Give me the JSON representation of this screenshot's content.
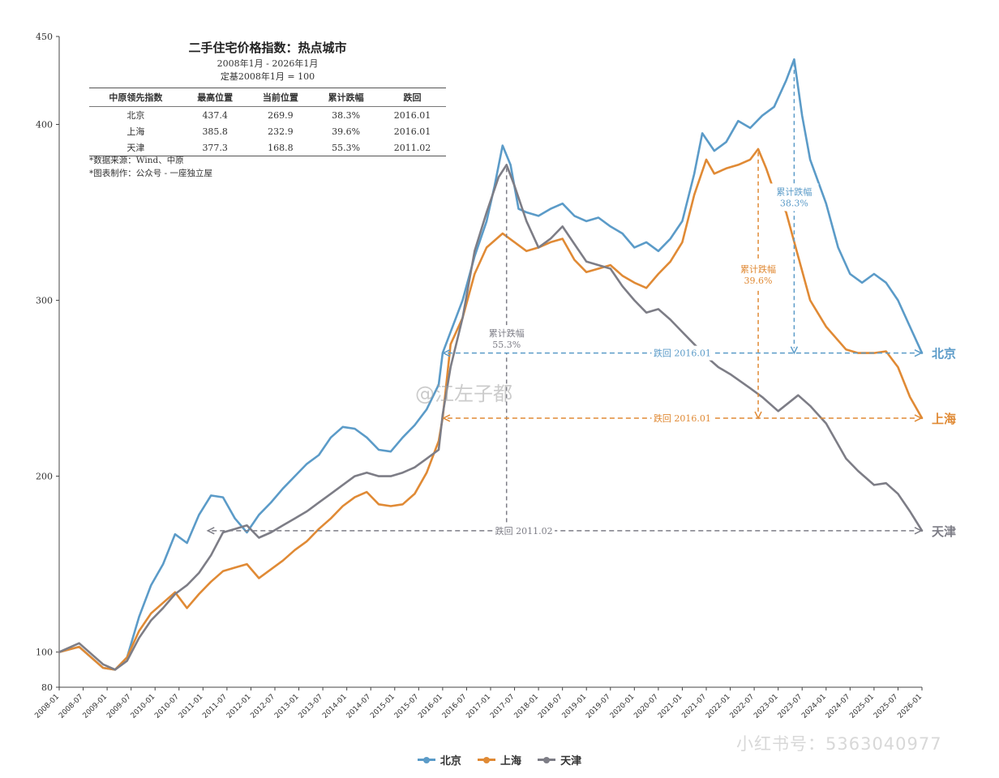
{
  "info": {
    "title": "二手住宅价格指数：热点城市",
    "subtitle1": "2008年1月 - 2026年1月",
    "subtitle2": "定基2008年1月 = 100",
    "headers": [
      "中原领先指数",
      "最高位置",
      "当前位置",
      "累计跌幅",
      "跌回"
    ],
    "rows": [
      [
        "北京",
        "437.4",
        "269.9",
        "38.3%",
        "2016.01"
      ],
      [
        "上海",
        "385.8",
        "232.9",
        "39.6%",
        "2016.01"
      ],
      [
        "天津",
        "377.3",
        "168.8",
        "55.3%",
        "2011.02"
      ]
    ],
    "note1": "*数据来源：Wind、中原",
    "note2": "*图表制作：公众号 - 一座独立屋"
  },
  "watermark": "@江左子都",
  "watermark2": "小红书号：5363040977",
  "legend": [
    {
      "label": "北京",
      "color": "#5b9bc8"
    },
    {
      "label": "上海",
      "color": "#e08a35"
    },
    {
      "label": "天津",
      "color": "#7d7d86"
    }
  ],
  "chart_data": {
    "type": "line",
    "title": "二手住宅价格指数：热点城市",
    "ylim": [
      80,
      450
    ],
    "yticks": [
      80,
      100,
      200,
      300,
      400,
      450
    ],
    "xticks": [
      "2008-01",
      "2008-07",
      "2009-01",
      "2009-07",
      "2010-01",
      "2010-07",
      "2011-01",
      "2011-07",
      "2012-01",
      "2012-07",
      "2013-01",
      "2013-07",
      "2014-01",
      "2014-07",
      "2015-01",
      "2015-07",
      "2016-01",
      "2016-07",
      "2017-01",
      "2017-07",
      "2018-01",
      "2018-07",
      "2019-01",
      "2019-07",
      "2020-01",
      "2020-07",
      "2021-01",
      "2021-07",
      "2022-01",
      "2022-07",
      "2023-01",
      "2023-07",
      "2024-01",
      "2024-07",
      "2025-01",
      "2025-07",
      "2026-01"
    ],
    "grid": false,
    "legend_position": "bottom",
    "series": [
      {
        "name": "北京",
        "color": "#5b9bc8",
        "points": [
          [
            "2008-01",
            100
          ],
          [
            "2008-06",
            103
          ],
          [
            "2008-12",
            91
          ],
          [
            "2009-03",
            90
          ],
          [
            "2009-06",
            97
          ],
          [
            "2009-09",
            120
          ],
          [
            "2009-12",
            138
          ],
          [
            "2010-03",
            150
          ],
          [
            "2010-06",
            167
          ],
          [
            "2010-09",
            162
          ],
          [
            "2010-12",
            178
          ],
          [
            "2011-03",
            189
          ],
          [
            "2011-06",
            188
          ],
          [
            "2011-09",
            176
          ],
          [
            "2011-12",
            168
          ],
          [
            "2012-03",
            178
          ],
          [
            "2012-06",
            185
          ],
          [
            "2012-09",
            193
          ],
          [
            "2012-12",
            200
          ],
          [
            "2013-03",
            207
          ],
          [
            "2013-06",
            212
          ],
          [
            "2013-09",
            222
          ],
          [
            "2013-12",
            228
          ],
          [
            "2014-03",
            227
          ],
          [
            "2014-06",
            222
          ],
          [
            "2014-09",
            215
          ],
          [
            "2014-12",
            214
          ],
          [
            "2015-03",
            222
          ],
          [
            "2015-06",
            229
          ],
          [
            "2015-09",
            238
          ],
          [
            "2015-12",
            252
          ],
          [
            "2016-01",
            270
          ],
          [
            "2016-03",
            282
          ],
          [
            "2016-06",
            300
          ],
          [
            "2016-09",
            325
          ],
          [
            "2016-12",
            345
          ],
          [
            "2017-02",
            365
          ],
          [
            "2017-04",
            388
          ],
          [
            "2017-06",
            377
          ],
          [
            "2017-08",
            352
          ],
          [
            "2017-10",
            350
          ],
          [
            "2018-01",
            348
          ],
          [
            "2018-04",
            352
          ],
          [
            "2018-07",
            355
          ],
          [
            "2018-10",
            348
          ],
          [
            "2019-01",
            345
          ],
          [
            "2019-04",
            347
          ],
          [
            "2019-07",
            342
          ],
          [
            "2019-10",
            338
          ],
          [
            "2020-01",
            330
          ],
          [
            "2020-04",
            333
          ],
          [
            "2020-07",
            328
          ],
          [
            "2020-10",
            335
          ],
          [
            "2021-01",
            345
          ],
          [
            "2021-04",
            372
          ],
          [
            "2021-06",
            395
          ],
          [
            "2021-09",
            385
          ],
          [
            "2021-12",
            390
          ],
          [
            "2022-03",
            402
          ],
          [
            "2022-06",
            398
          ],
          [
            "2022-09",
            405
          ],
          [
            "2022-12",
            410
          ],
          [
            "2023-03",
            425
          ],
          [
            "2023-05",
            437
          ],
          [
            "2023-07",
            405
          ],
          [
            "2023-09",
            380
          ],
          [
            "2024-01",
            355
          ],
          [
            "2024-04",
            330
          ],
          [
            "2024-07",
            315
          ],
          [
            "2024-10",
            310
          ],
          [
            "2025-01",
            315
          ],
          [
            "2025-04",
            310
          ],
          [
            "2025-07",
            300
          ],
          [
            "2025-10",
            285
          ],
          [
            "2026-01",
            270
          ]
        ]
      },
      {
        "name": "上海",
        "color": "#e08a35",
        "points": [
          [
            "2008-01",
            100
          ],
          [
            "2008-06",
            103
          ],
          [
            "2008-12",
            91
          ],
          [
            "2009-03",
            90
          ],
          [
            "2009-06",
            97
          ],
          [
            "2009-09",
            112
          ],
          [
            "2009-12",
            122
          ],
          [
            "2010-03",
            128
          ],
          [
            "2010-06",
            134
          ],
          [
            "2010-09",
            125
          ],
          [
            "2010-12",
            133
          ],
          [
            "2011-03",
            140
          ],
          [
            "2011-06",
            146
          ],
          [
            "2011-09",
            148
          ],
          [
            "2011-12",
            150
          ],
          [
            "2012-03",
            142
          ],
          [
            "2012-06",
            147
          ],
          [
            "2012-09",
            152
          ],
          [
            "2012-12",
            158
          ],
          [
            "2013-03",
            163
          ],
          [
            "2013-06",
            170
          ],
          [
            "2013-09",
            176
          ],
          [
            "2013-12",
            183
          ],
          [
            "2014-03",
            188
          ],
          [
            "2014-06",
            191
          ],
          [
            "2014-09",
            184
          ],
          [
            "2014-12",
            183
          ],
          [
            "2015-03",
            184
          ],
          [
            "2015-06",
            190
          ],
          [
            "2015-09",
            202
          ],
          [
            "2015-12",
            220
          ],
          [
            "2016-01",
            233
          ],
          [
            "2016-03",
            275
          ],
          [
            "2016-06",
            290
          ],
          [
            "2016-09",
            315
          ],
          [
            "2016-12",
            330
          ],
          [
            "2017-04",
            338
          ],
          [
            "2017-07",
            333
          ],
          [
            "2017-10",
            328
          ],
          [
            "2018-01",
            330
          ],
          [
            "2018-04",
            333
          ],
          [
            "2018-07",
            335
          ],
          [
            "2018-10",
            323
          ],
          [
            "2019-01",
            316
          ],
          [
            "2019-04",
            318
          ],
          [
            "2019-07",
            320
          ],
          [
            "2019-10",
            314
          ],
          [
            "2020-01",
            310
          ],
          [
            "2020-04",
            307
          ],
          [
            "2020-07",
            315
          ],
          [
            "2020-10",
            322
          ],
          [
            "2021-01",
            333
          ],
          [
            "2021-04",
            360
          ],
          [
            "2021-07",
            380
          ],
          [
            "2021-09",
            372
          ],
          [
            "2021-12",
            375
          ],
          [
            "2022-03",
            377
          ],
          [
            "2022-06",
            380
          ],
          [
            "2022-08",
            386
          ],
          [
            "2022-10",
            375
          ],
          [
            "2022-12",
            362
          ],
          [
            "2023-03",
            350
          ],
          [
            "2023-06",
            325
          ],
          [
            "2023-09",
            300
          ],
          [
            "2024-01",
            285
          ],
          [
            "2024-06",
            272
          ],
          [
            "2024-09",
            270
          ],
          [
            "2025-01",
            270
          ],
          [
            "2025-04",
            271
          ],
          [
            "2025-07",
            262
          ],
          [
            "2025-10",
            245
          ],
          [
            "2026-01",
            233
          ]
        ]
      },
      {
        "name": "天津",
        "color": "#7d7d86",
        "points": [
          [
            "2008-01",
            100
          ],
          [
            "2008-06",
            105
          ],
          [
            "2008-12",
            93
          ],
          [
            "2009-03",
            90
          ],
          [
            "2009-06",
            95
          ],
          [
            "2009-09",
            108
          ],
          [
            "2009-12",
            118
          ],
          [
            "2010-03",
            125
          ],
          [
            "2010-06",
            133
          ],
          [
            "2010-09",
            138
          ],
          [
            "2010-12",
            145
          ],
          [
            "2011-03",
            155
          ],
          [
            "2011-06",
            168
          ],
          [
            "2011-09",
            170
          ],
          [
            "2011-12",
            172
          ],
          [
            "2012-03",
            165
          ],
          [
            "2012-06",
            168
          ],
          [
            "2012-09",
            172
          ],
          [
            "2012-12",
            176
          ],
          [
            "2013-03",
            180
          ],
          [
            "2013-06",
            185
          ],
          [
            "2013-09",
            190
          ],
          [
            "2013-12",
            195
          ],
          [
            "2014-03",
            200
          ],
          [
            "2014-06",
            202
          ],
          [
            "2014-09",
            200
          ],
          [
            "2014-12",
            200
          ],
          [
            "2015-03",
            202
          ],
          [
            "2015-06",
            205
          ],
          [
            "2015-09",
            210
          ],
          [
            "2015-12",
            215
          ],
          [
            "2016-01",
            235
          ],
          [
            "2016-03",
            262
          ],
          [
            "2016-06",
            290
          ],
          [
            "2016-09",
            328
          ],
          [
            "2016-12",
            350
          ],
          [
            "2017-03",
            370
          ],
          [
            "2017-05",
            377
          ],
          [
            "2017-07",
            365
          ],
          [
            "2017-10",
            345
          ],
          [
            "2018-01",
            330
          ],
          [
            "2018-04",
            335
          ],
          [
            "2018-07",
            342
          ],
          [
            "2018-10",
            332
          ],
          [
            "2019-01",
            322
          ],
          [
            "2019-04",
            320
          ],
          [
            "2019-07",
            318
          ],
          [
            "2019-10",
            308
          ],
          [
            "2020-01",
            300
          ],
          [
            "2020-04",
            293
          ],
          [
            "2020-07",
            295
          ],
          [
            "2020-10",
            289
          ],
          [
            "2021-01",
            282
          ],
          [
            "2021-04",
            275
          ],
          [
            "2021-07",
            268
          ],
          [
            "2021-10",
            262
          ],
          [
            "2022-01",
            258
          ],
          [
            "2022-06",
            250
          ],
          [
            "2022-09",
            245
          ],
          [
            "2023-01",
            237
          ],
          [
            "2023-06",
            246
          ],
          [
            "2023-09",
            240
          ],
          [
            "2024-01",
            230
          ],
          [
            "2024-06",
            210
          ],
          [
            "2024-09",
            203
          ],
          [
            "2025-01",
            195
          ],
          [
            "2025-04",
            196
          ],
          [
            "2025-07",
            190
          ],
          [
            "2025-10",
            180
          ],
          [
            "2026-01",
            169
          ]
        ]
      }
    ],
    "annotations": [
      {
        "text": "累计跌幅",
        "value": "38.3%",
        "series": "北京",
        "x": "2023-05",
        "y_from": 437,
        "y_to": 270
      },
      {
        "text": "累计跌幅",
        "value": "39.6%",
        "series": "上海",
        "x": "2022-08",
        "y_from": 386,
        "y_to": 233
      },
      {
        "text": "累计跌幅",
        "value": "55.3%",
        "series": "天津",
        "x": "2017-05",
        "y_from": 377,
        "y_to": 169
      },
      {
        "text": "跌回 2016.01",
        "series": "北京",
        "y": 270,
        "x_from": "2016-01",
        "x_to": "2026-01",
        "end_label": "北京"
      },
      {
        "text": "跌回 2016.01",
        "series": "上海",
        "y": 233,
        "x_from": "2016-01",
        "x_to": "2026-01",
        "end_label": "上海"
      },
      {
        "text": "跌回 2011.02",
        "series": "天津",
        "y": 169,
        "x_from": "2011-02",
        "x_to": "2026-01",
        "end_label": "天津"
      }
    ]
  }
}
